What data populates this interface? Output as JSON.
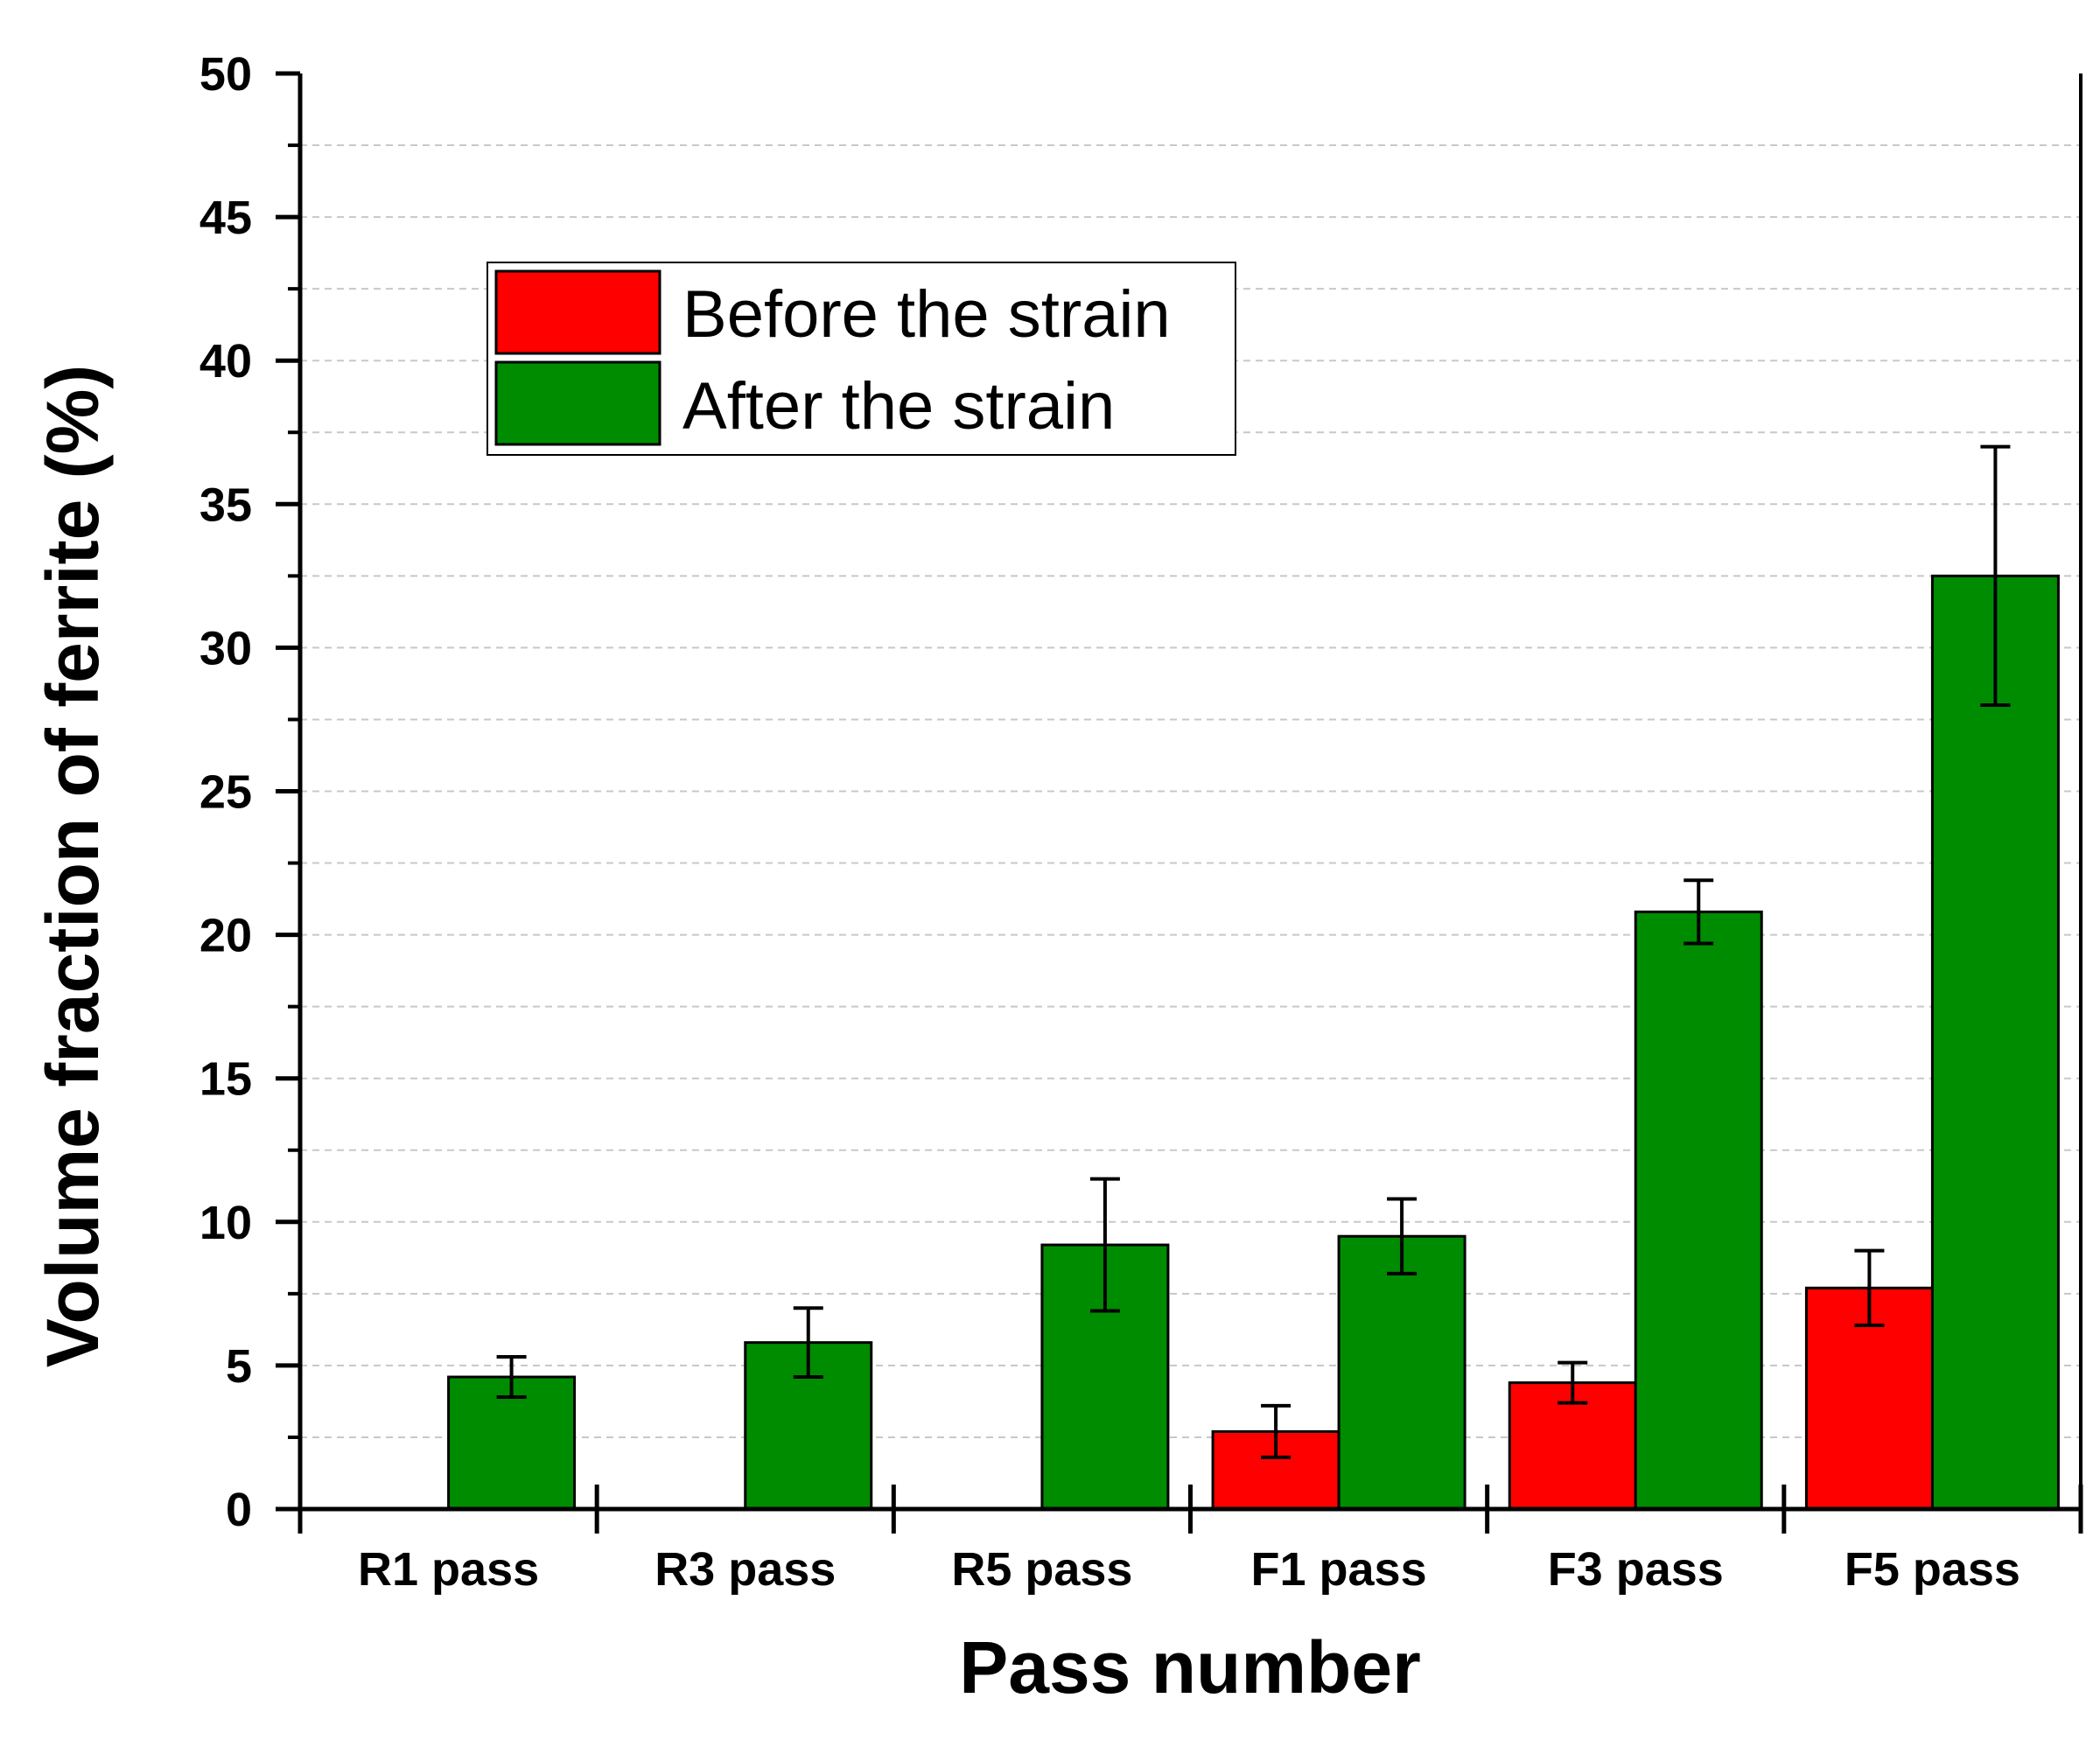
{
  "chart_data": {
    "type": "bar",
    "title": "",
    "xlabel": "Pass number",
    "ylabel": "Volume fraction of ferrite (%)",
    "ylim": [
      0,
      50
    ],
    "yticks": [
      0,
      5,
      10,
      15,
      20,
      25,
      30,
      35,
      40,
      45,
      50
    ],
    "ytick_labels": [
      "0",
      "5",
      "10",
      "15",
      "20",
      "25",
      "30",
      "35",
      "40",
      "45",
      "50"
    ],
    "grid": true,
    "legend_position": "upper-left",
    "categories": [
      "R1 pass",
      "R3 pass",
      "R5 pass",
      "F1 pass",
      "F3 pass",
      "F5 pass"
    ],
    "series": [
      {
        "name": "Before the strain",
        "color": "#ff0000",
        "values": [
          null,
          null,
          null,
          2.7,
          4.4,
          7.7
        ],
        "errors": [
          null,
          null,
          null,
          0.9,
          0.7,
          1.3
        ]
      },
      {
        "name": "After the strain",
        "color": "#008c00",
        "values": [
          4.6,
          5.8,
          9.2,
          9.5,
          20.8,
          32.5
        ],
        "errors": [
          0.7,
          1.2,
          2.3,
          1.3,
          1.1,
          4.5
        ]
      }
    ]
  }
}
